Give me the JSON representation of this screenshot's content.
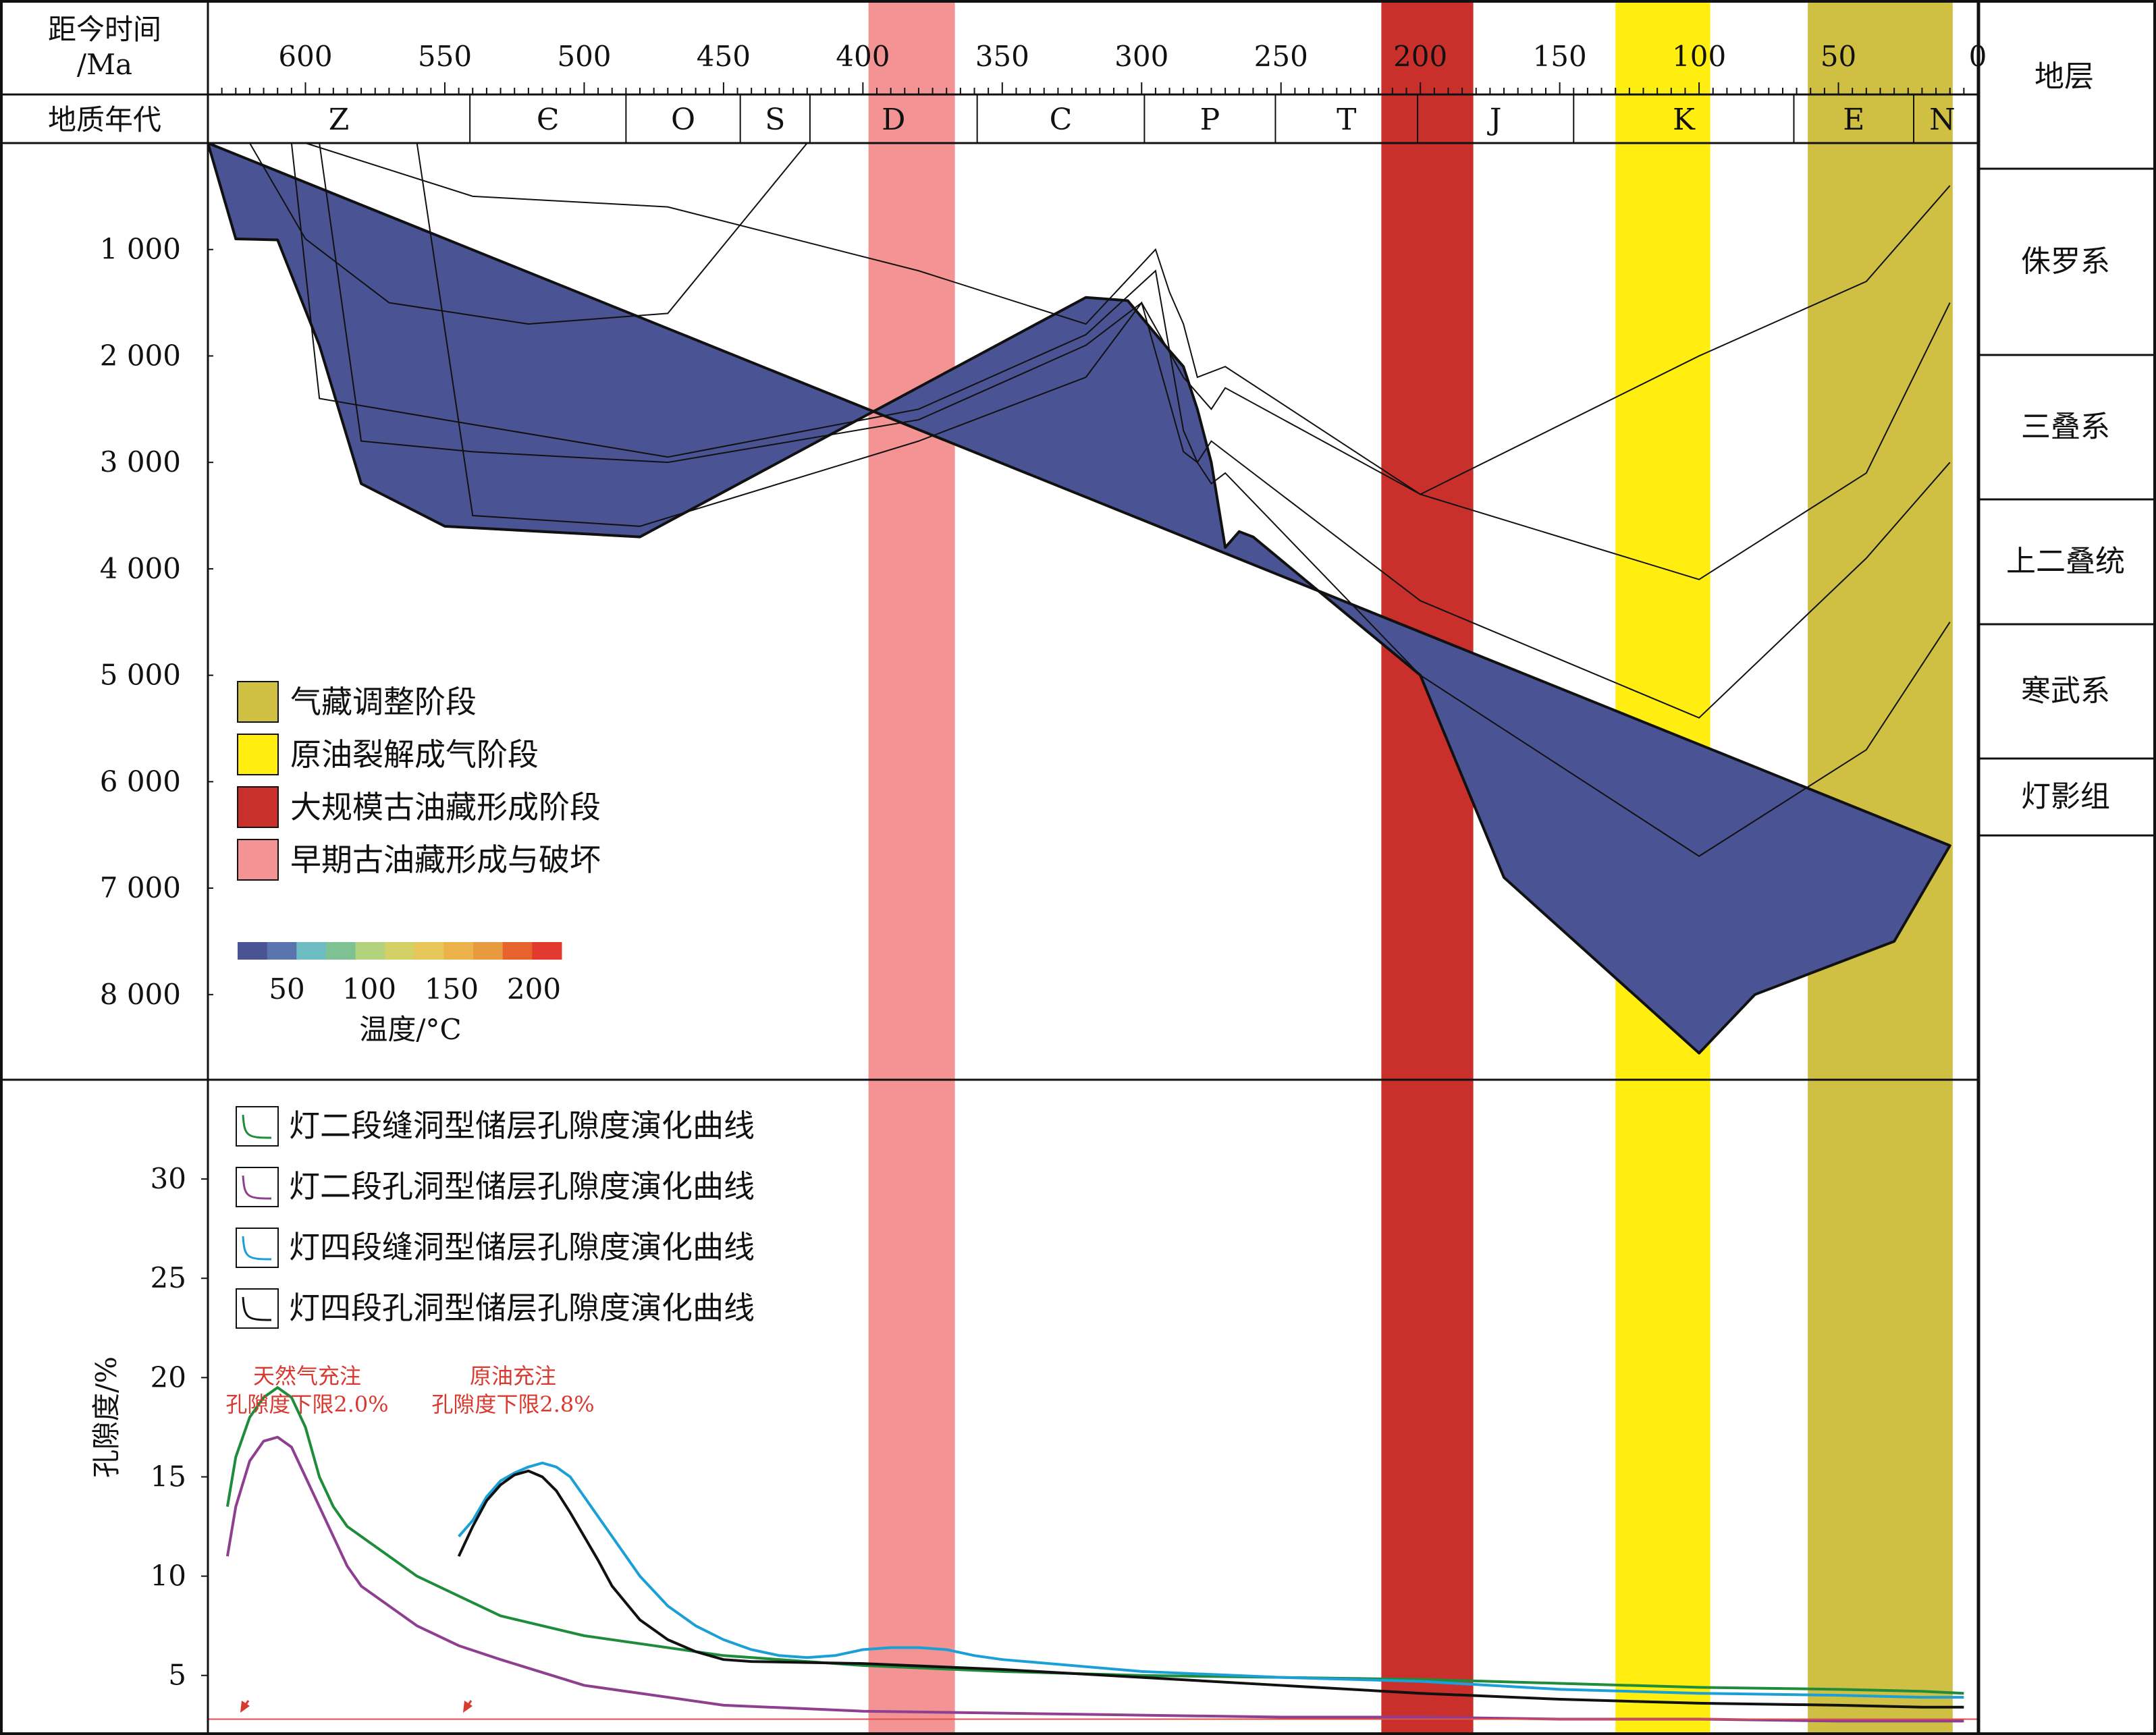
{
  "header": {
    "time_title_line1": "距今时间",
    "time_title_line2": "/Ma",
    "era_title": "地质年代",
    "strata_title": "地层"
  },
  "time_ticks": [
    "600",
    "550",
    "500",
    "450",
    "400",
    "350",
    "300",
    "250",
    "200",
    "150",
    "100",
    "50",
    "0"
  ],
  "periods": [
    {
      "code": "Z",
      "start": 635,
      "end": 541
    },
    {
      "code": "Є",
      "start": 541,
      "end": 485
    },
    {
      "code": "O",
      "start": 485,
      "end": 444
    },
    {
      "code": "S",
      "start": 444,
      "end": 419
    },
    {
      "code": "D",
      "start": 419,
      "end": 359
    },
    {
      "code": "C",
      "start": 359,
      "end": 299
    },
    {
      "code": "P",
      "start": 299,
      "end": 252
    },
    {
      "code": "T",
      "start": 252,
      "end": 201
    },
    {
      "code": "J",
      "start": 201,
      "end": 145
    },
    {
      "code": "K",
      "start": 145,
      "end": 66
    },
    {
      "code": "E",
      "start": 66,
      "end": 23
    },
    {
      "code": "N",
      "start": 23,
      "end": 2.5
    }
  ],
  "stage_bands": [
    {
      "name": "早期古油藏形成与破坏",
      "start": 398,
      "end": 367,
      "color": "#f49393"
    },
    {
      "name": "大规模古油藏形成阶段",
      "start": 214,
      "end": 181,
      "color": "#c9302c"
    },
    {
      "name": "原油裂解成气阶段",
      "start": 130,
      "end": 96,
      "color": "#ffee10"
    },
    {
      "name": "气藏调整阶段",
      "start": 61,
      "end": 9,
      "color": "#cfc044"
    }
  ],
  "stage_legend": [
    {
      "label": "气藏调整阶段",
      "color": "#cfc044"
    },
    {
      "label": "原油裂解成气阶段",
      "color": "#ffee10"
    },
    {
      "label": "大规模古油藏形成阶段",
      "color": "#c9302c"
    },
    {
      "label": "早期古油藏形成与破坏",
      "color": "#f49393"
    }
  ],
  "strata": [
    "侏罗系",
    "三叠系",
    "上二叠统",
    "寒武系",
    "灯影组"
  ],
  "colorbar": {
    "title": "温度/°C",
    "ticks": [
      "50",
      "100",
      "150",
      "200"
    ],
    "colors": [
      "#4a5394",
      "#5a74b0",
      "#6cbcc2",
      "#7ec294",
      "#b3d27d",
      "#d3d166",
      "#e7c659",
      "#ebb24a",
      "#e89a3f",
      "#e6632d",
      "#e33a2f"
    ]
  },
  "chart_data": [
    {
      "type": "area",
      "title": "",
      "xlabel": "距今时间/Ma",
      "ylabel": "",
      "xlim": [
        635,
        0
      ],
      "ylim": [
        0,
        8800
      ],
      "ytick_labels": [
        "1 000",
        "2 000",
        "3 000",
        "4 000",
        "5 000",
        "6 000",
        "7 000",
        "8 000"
      ],
      "burial_base_depth": {
        "x": [
          635,
          625,
          610,
          595,
          580,
          550,
          480,
          320,
          305,
          290,
          285,
          280,
          275,
          270,
          265,
          260,
          200,
          170,
          100,
          80,
          60,
          30,
          10
        ],
        "y": [
          0,
          900,
          910,
          1900,
          3200,
          3600,
          3700,
          1450,
          1480,
          1950,
          2100,
          2500,
          3000,
          3800,
          3650,
          3700,
          5000,
          6900,
          8550,
          8000,
          7800,
          7500,
          6600
        ]
      },
      "temperature_scale": "blue (low) to red (high), 20–235 °C",
      "strata_burial_lines": [
        {
          "name": "侏罗系",
          "x": [
            600,
            540,
            470,
            380,
            320,
            295,
            290,
            285,
            280,
            270,
            200,
            100,
            40,
            10
          ],
          "y": [
            0,
            500,
            600,
            1200,
            1700,
            1000,
            1400,
            1700,
            2200,
            2100,
            3300,
            2000,
            1300,
            400
          ]
        },
        {
          "name": "三叠系",
          "x": [
            595,
            580,
            540,
            470,
            380,
            320,
            300,
            285,
            275,
            270,
            200,
            100,
            40,
            10
          ],
          "y": [
            0,
            2800,
            2900,
            3000,
            2600,
            1900,
            1500,
            2200,
            2500,
            2300,
            3300,
            4100,
            3100,
            1500
          ]
        },
        {
          "name": "上二叠统",
          "x": [
            605,
            595,
            550,
            470,
            380,
            320,
            295,
            285,
            280,
            275,
            200,
            100,
            40,
            10
          ],
          "y": [
            0,
            2400,
            2600,
            2950,
            2500,
            1800,
            1200,
            2700,
            3000,
            2800,
            4300,
            5400,
            3900,
            3000
          ]
        },
        {
          "name": "寒武系",
          "x": [
            560,
            540,
            480,
            380,
            320,
            300,
            285,
            280,
            275,
            270,
            200,
            100,
            40,
            10
          ],
          "y": [
            0,
            3500,
            3600,
            2800,
            2200,
            1500,
            2900,
            3000,
            3200,
            3100,
            5000,
            6700,
            5700,
            4500
          ]
        },
        {
          "name": "灯影组",
          "x": [
            620,
            600,
            570,
            520,
            470,
            420
          ],
          "y": [
            0,
            900,
            1500,
            1700,
            1600,
            0
          ]
        }
      ]
    },
    {
      "type": "line",
      "title": "",
      "xlabel": "距今时间/Ma",
      "ylabel": "孔隙度/%",
      "xlim": [
        635,
        0
      ],
      "ylim": [
        2,
        35
      ],
      "yticks": [
        5,
        10,
        15,
        20,
        25,
        30
      ],
      "series": [
        {
          "name": "灯二段缝洞型储层孔隙度演化曲线",
          "color": "#1e8c3a",
          "x": [
            628,
            625,
            620,
            615,
            610,
            605,
            600,
            595,
            590,
            585,
            580,
            570,
            560,
            545,
            530,
            500,
            450,
            400,
            350,
            300,
            250,
            200,
            150,
            100,
            50,
            20,
            5
          ],
          "y": [
            13.5,
            16,
            18,
            19,
            19.5,
            19,
            17.5,
            15,
            13.5,
            12.5,
            12,
            11,
            10,
            9,
            8,
            7,
            6,
            5.5,
            5.2,
            5,
            4.9,
            4.8,
            4.6,
            4.4,
            4.3,
            4.2,
            4.1
          ]
        },
        {
          "name": "灯二段孔洞型储层孔隙度演化曲线",
          "color": "#8e3f8f",
          "x": [
            628,
            625,
            620,
            615,
            610,
            605,
            600,
            595,
            590,
            585,
            580,
            570,
            560,
            545,
            530,
            500,
            450,
            400,
            350,
            300,
            250,
            200,
            150,
            100,
            50,
            20,
            5
          ],
          "y": [
            11,
            13.5,
            15.8,
            16.8,
            17,
            16.5,
            15,
            13.5,
            12,
            10.5,
            9.5,
            8.5,
            7.5,
            6.5,
            5.8,
            4.5,
            3.5,
            3.2,
            3.1,
            3,
            2.9,
            2.9,
            2.8,
            2.8,
            2.7,
            2.7,
            2.7
          ]
        },
        {
          "name": "灯四段缝洞型储层孔隙度演化曲线",
          "color": "#1a9fd6",
          "x": [
            545,
            540,
            535,
            530,
            525,
            520,
            515,
            510,
            505,
            500,
            495,
            490,
            480,
            470,
            460,
            450,
            440,
            430,
            420,
            410,
            400,
            390,
            380,
            370,
            360,
            350,
            300,
            250,
            200,
            150,
            100,
            50,
            20,
            5
          ],
          "y": [
            12,
            12.8,
            14,
            14.8,
            15.2,
            15.5,
            15.7,
            15.5,
            15,
            14,
            13,
            12,
            10,
            8.5,
            7.5,
            6.8,
            6.3,
            6,
            5.9,
            6,
            6.3,
            6.4,
            6.4,
            6.3,
            6,
            5.8,
            5.2,
            4.9,
            4.7,
            4.3,
            4.1,
            4,
            3.9,
            3.9
          ]
        },
        {
          "name": "灯四段孔洞型储层孔隙度演化曲线",
          "color": "#111111",
          "x": [
            545,
            540,
            535,
            530,
            525,
            520,
            515,
            510,
            505,
            500,
            495,
            490,
            480,
            470,
            460,
            450,
            440,
            400,
            350,
            300,
            250,
            200,
            150,
            100,
            50,
            20,
            5
          ],
          "y": [
            11,
            12.5,
            13.8,
            14.6,
            15.1,
            15.3,
            15,
            14.3,
            13.2,
            12,
            10.8,
            9.5,
            7.8,
            6.8,
            6.2,
            5.8,
            5.7,
            5.6,
            5.3,
            4.9,
            4.5,
            4.1,
            3.8,
            3.6,
            3.5,
            3.4,
            3.4
          ]
        }
      ],
      "annotations": [
        {
          "text_line1": "天然气充注",
          "text_line2": "孔隙度下限2.0%",
          "value": 2.0
        },
        {
          "text_line1": "原油充注",
          "text_line2": "孔隙度下限2.8%",
          "value": 2.8
        }
      ]
    }
  ]
}
